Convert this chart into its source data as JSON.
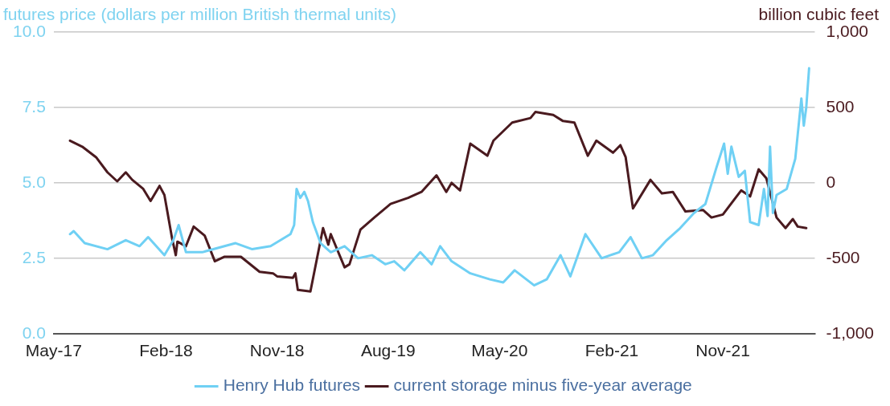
{
  "chart_data": {
    "type": "line",
    "ylabel": "futures price (dollars per million British thermal units)",
    "y2label": "billion cubic feet",
    "xlim": [
      "2017-05-01",
      "2022-06-15"
    ],
    "xticks": [
      {
        "value": "2017-05-01",
        "label": "May-17"
      },
      {
        "value": "2018-02-01",
        "label": "Feb-18"
      },
      {
        "value": "2018-11-01",
        "label": "Nov-18"
      },
      {
        "value": "2019-08-01",
        "label": "Aug-19"
      },
      {
        "value": "2020-05-01",
        "label": "May-20"
      },
      {
        "value": "2021-02-01",
        "label": "Feb-21"
      },
      {
        "value": "2021-11-01",
        "label": "Nov-21"
      }
    ],
    "ylim": [
      0,
      10
    ],
    "yticks": [
      {
        "value": 0,
        "label": "0.0"
      },
      2.5,
      {
        "value": 5,
        "label": "5.0"
      },
      7.5,
      {
        "value": 10,
        "label": "10.0"
      }
    ],
    "y2lim": [
      -1000,
      1000
    ],
    "y2ticks": [
      {
        "value": -1000,
        "label": "-1,000"
      },
      -500,
      0,
      500,
      {
        "value": 1000,
        "label": "1,000"
      }
    ],
    "grid": "y",
    "legend": "bottom",
    "marker": "none",
    "line_style": "solid",
    "series": [
      {
        "name": "Henry Hub futures",
        "color": "#6fd0f4",
        "axis": "y",
        "x": [
          "2017-06-10",
          "2017-06-19",
          "2017-07-16",
          "2017-09-10",
          "2017-10-25",
          "2017-11-28",
          "2017-12-19",
          "2018-01-28",
          "2018-02-19",
          "2018-03-04",
          "2018-03-22",
          "2018-05-01",
          "2018-07-22",
          "2018-09-01",
          "2018-10-16",
          "2018-12-04",
          "2018-12-13",
          "2018-12-19",
          "2018-12-28",
          "2019-01-07",
          "2019-01-16",
          "2019-01-28",
          "2019-02-16",
          "2019-03-13",
          "2019-04-16",
          "2019-05-19",
          "2019-06-22",
          "2019-07-25",
          "2019-08-16",
          "2019-09-10",
          "2019-10-19",
          "2019-11-16",
          "2019-12-07",
          "2020-01-04",
          "2020-02-19",
          "2020-04-07",
          "2020-05-10",
          "2020-06-07",
          "2020-07-25",
          "2020-08-25",
          "2020-09-28",
          "2020-10-22",
          "2020-11-28",
          "2021-01-07",
          "2021-02-19",
          "2021-03-19",
          "2021-04-16",
          "2021-05-13",
          "2021-06-16",
          "2021-07-19",
          "2021-08-22",
          "2021-09-19",
          "2021-10-16",
          "2021-11-04",
          "2021-11-13",
          "2021-11-22",
          "2021-12-10",
          "2021-12-25",
          "2022-01-07",
          "2022-01-28",
          "2022-02-10",
          "2022-02-19",
          "2022-02-25",
          "2022-03-04",
          "2022-03-13",
          "2022-04-07",
          "2022-04-28",
          "2022-05-13",
          "2022-05-19",
          "2022-05-25",
          "2022-06-01"
        ],
        "values": [
          3.3,
          3.4,
          3.0,
          2.8,
          3.1,
          2.9,
          3.2,
          2.6,
          3.1,
          3.6,
          2.7,
          2.7,
          3.0,
          2.8,
          2.9,
          3.3,
          3.6,
          4.8,
          4.5,
          4.7,
          4.4,
          3.7,
          3.0,
          2.7,
          2.9,
          2.5,
          2.6,
          2.3,
          2.4,
          2.1,
          2.7,
          2.3,
          2.9,
          2.4,
          2.0,
          1.8,
          1.7,
          2.1,
          1.6,
          1.8,
          2.6,
          1.9,
          3.3,
          2.5,
          2.7,
          3.2,
          2.5,
          2.6,
          3.1,
          3.5,
          4.0,
          4.3,
          5.5,
          6.3,
          5.3,
          6.2,
          5.2,
          5.4,
          3.7,
          3.6,
          4.8,
          3.9,
          6.2,
          4.0,
          4.6,
          4.8,
          5.8,
          7.8,
          6.9,
          7.5,
          8.8
        ]
      },
      {
        "name": "current storage minus five-year average",
        "color": "#4a1a1f",
        "axis": "y2",
        "x": [
          "2017-06-10",
          "2017-07-10",
          "2017-08-13",
          "2017-09-10",
          "2017-10-04",
          "2017-10-25",
          "2017-11-10",
          "2017-12-07",
          "2017-12-25",
          "2018-01-16",
          "2018-01-28",
          "2018-02-16",
          "2018-02-25",
          "2018-03-01",
          "2018-03-22",
          "2018-04-10",
          "2018-05-07",
          "2018-06-01",
          "2018-06-25",
          "2018-08-04",
          "2018-09-19",
          "2018-10-22",
          "2018-11-01",
          "2018-12-10",
          "2018-12-16",
          "2018-12-22",
          "2019-01-22",
          "2019-02-22",
          "2019-03-07",
          "2019-03-13",
          "2019-04-16",
          "2019-04-28",
          "2019-05-25",
          "2019-06-28",
          "2019-08-07",
          "2019-09-19",
          "2019-10-22",
          "2019-11-28",
          "2019-12-22",
          "2020-01-04",
          "2020-01-25",
          "2020-02-19",
          "2020-04-01",
          "2020-04-16",
          "2020-06-01",
          "2020-07-16",
          "2020-07-28",
          "2020-09-10",
          "2020-10-04",
          "2020-11-01",
          "2020-12-04",
          "2020-12-25",
          "2021-02-04",
          "2021-02-22",
          "2021-03-07",
          "2021-03-25",
          "2021-05-07",
          "2021-06-04",
          "2021-07-01",
          "2021-08-01",
          "2021-09-13",
          "2021-10-04",
          "2021-11-01",
          "2021-12-16",
          "2022-01-07",
          "2022-01-28",
          "2022-02-16",
          "2022-03-13",
          "2022-04-04",
          "2022-04-22",
          "2022-05-04",
          "2022-05-25"
        ],
        "values": [
          280,
          240,
          170,
          70,
          10,
          70,
          20,
          -40,
          -120,
          -20,
          -80,
          -370,
          -480,
          -390,
          -420,
          -290,
          -350,
          -520,
          -490,
          -490,
          -590,
          -600,
          -620,
          -630,
          -600,
          -710,
          -720,
          -300,
          -410,
          -340,
          -560,
          -540,
          -310,
          -230,
          -140,
          -100,
          -60,
          50,
          -60,
          0,
          -50,
          260,
          180,
          280,
          400,
          430,
          470,
          450,
          410,
          400,
          180,
          280,
          200,
          250,
          170,
          -170,
          20,
          -70,
          -60,
          -190,
          -180,
          -230,
          -210,
          -50,
          -90,
          90,
          30,
          -230,
          -300,
          -240,
          -290,
          -300
        ]
      }
    ]
  }
}
